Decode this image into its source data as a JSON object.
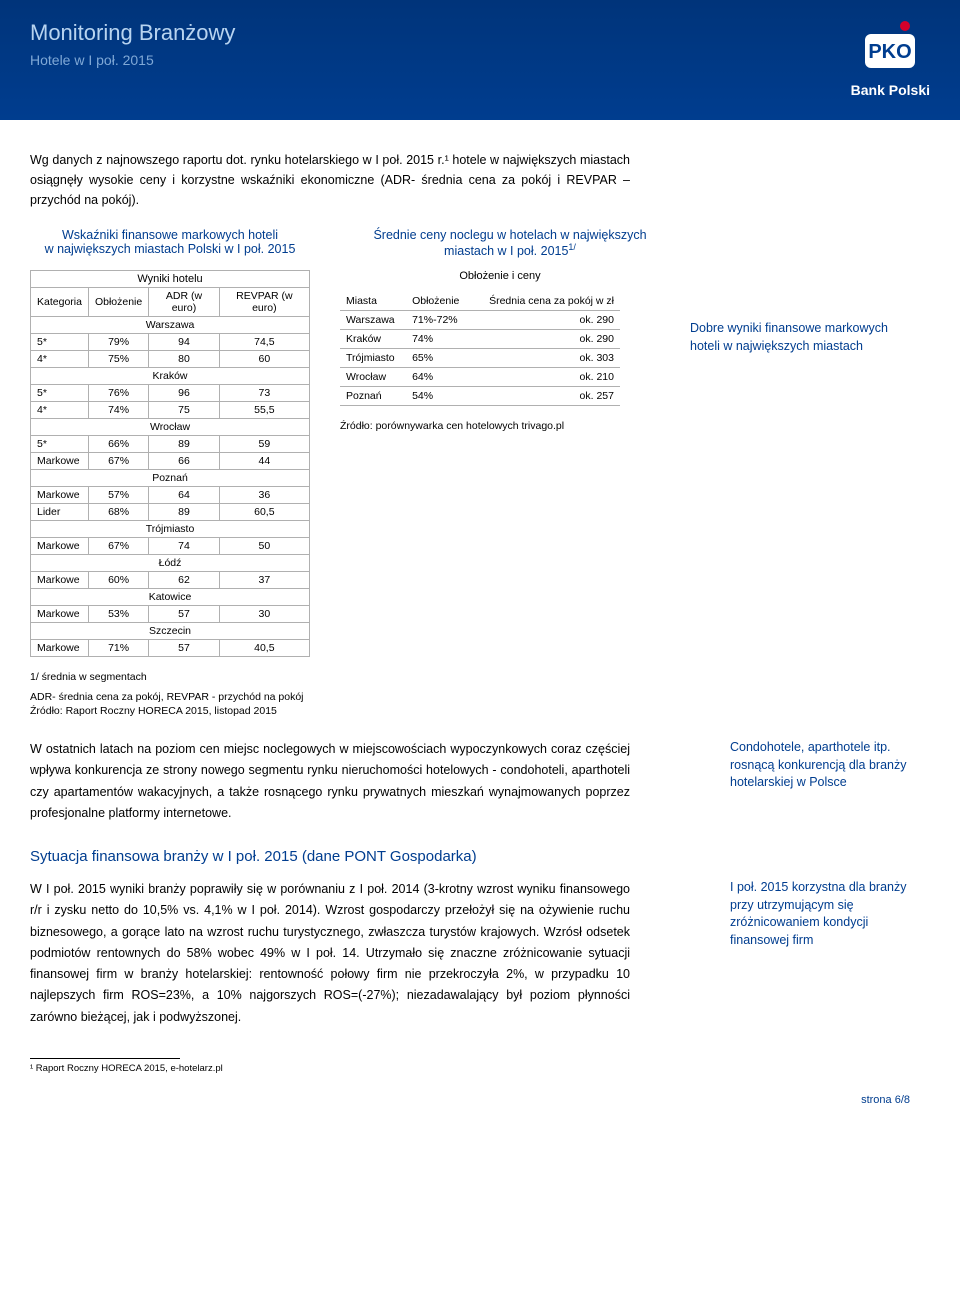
{
  "header": {
    "title": "Monitoring Branżowy",
    "subtitle": "Hotele w I poł. 2015",
    "logo_text": "Bank Polski",
    "colors": {
      "bg_top": "#00347a",
      "bg_bottom": "#003d8f",
      "title_color": "#b8d4f0",
      "subtitle_color": "#7fa8d6"
    }
  },
  "intro": {
    "text": "Wg danych z najnowszego raportu dot. rynku hotelarskiego w I poł. 2015 r.¹ hotele w największych miastach osiągnęły wysokie ceny i korzystne wskaźniki ekonomiczne (ADR- średnia cena za pokój i REVPAR – przychód na pokój)."
  },
  "table1": {
    "title": "Wskaźniki finansowe markowych hoteli w największych miastach Polski w I poł. 2015",
    "sup_title": "Wyniki hotelu",
    "headers": {
      "cat": "Kategoria",
      "occ": "Obłożenie",
      "adr": "ADR (w euro)",
      "revpar": "REVPAR (w euro)"
    },
    "sections": [
      {
        "city": "Warszawa",
        "rows": [
          {
            "cat": "5*",
            "occ": "79%",
            "adr": "94",
            "rev": "74,5"
          },
          {
            "cat": "4*",
            "occ": "75%",
            "adr": "80",
            "rev": "60"
          }
        ]
      },
      {
        "city": "Kraków",
        "rows": [
          {
            "cat": "5*",
            "occ": "76%",
            "adr": "96",
            "rev": "73"
          },
          {
            "cat": "4*",
            "occ": "74%",
            "adr": "75",
            "rev": "55,5"
          }
        ]
      },
      {
        "city": "Wrocław",
        "rows": [
          {
            "cat": "5*",
            "occ": "66%",
            "adr": "89",
            "rev": "59"
          },
          {
            "cat": "Markowe",
            "occ": "67%",
            "adr": "66",
            "rev": "44"
          }
        ]
      },
      {
        "city": "Poznań",
        "rows": [
          {
            "cat": "Markowe",
            "occ": "57%",
            "adr": "64",
            "rev": "36"
          },
          {
            "cat": "Lider",
            "occ": "68%",
            "adr": "89",
            "rev": "60,5"
          }
        ]
      },
      {
        "city": "Trójmiasto",
        "rows": [
          {
            "cat": "Markowe",
            "occ": "67%",
            "adr": "74",
            "rev": "50"
          }
        ]
      },
      {
        "city": "Łódź",
        "rows": [
          {
            "cat": "Markowe",
            "occ": "60%",
            "adr": "62",
            "rev": "37"
          }
        ]
      },
      {
        "city": "Katowice",
        "rows": [
          {
            "cat": "Markowe",
            "occ": "53%",
            "adr": "57",
            "rev": "30"
          }
        ]
      },
      {
        "city": "Szczecin",
        "rows": [
          {
            "cat": "Markowe",
            "occ": "71%",
            "adr": "57",
            "rev": "40,5"
          }
        ]
      }
    ]
  },
  "table2": {
    "title": "Średnie ceny noclegu w hotelach w największych miastach w I poł. 2015",
    "title_sup": "1/",
    "sup_title": "Obłożenie i ceny",
    "headers": {
      "city": "Miasta",
      "occ": "Obłożenie",
      "price": "Średnia cena za pokój w zł"
    },
    "rows": [
      {
        "city": "Warszawa",
        "occ": "71%-72%",
        "price": "ok. 290"
      },
      {
        "city": "Kraków",
        "occ": "74%",
        "price": "ok. 290"
      },
      {
        "city": "Trójmiasto",
        "occ": "65%",
        "price": "ok. 303"
      },
      {
        "city": "Wrocław",
        "occ": "64%",
        "price": "ok. 210"
      },
      {
        "city": "Poznań",
        "occ": "54%",
        "price": "ok. 257"
      }
    ],
    "source": "Źródło: porównywarka cen hotelowych trivago.pl"
  },
  "margin_notes": {
    "note1": "Dobre wyniki finansowe markowych hoteli w największych miastach",
    "note2": "Condohotele, aparthotele itp. rosnącą konkurencją dla branży hotelarskiej w Polsce",
    "note3": "I poł. 2015 korzystna dla branży przy utrzymującym się zróżnicowaniem kondycji finansowej firm"
  },
  "footnotes_mid": {
    "l1": "1/ średnia w segmentach",
    "l2": "ADR- średnia cena za pokój,  REVPAR -  przychód na pokój",
    "l3": "Źródło: Raport Roczny HORECA 2015, listopad 2015"
  },
  "para2": "W ostatnich latach na poziom cen miejsc noclegowych w miejscowościach wypoczynkowych coraz częściej wpływa konkurencja ze strony nowego segmentu rynku nieruchomości hotelowych - condohoteli, aparthoteli czy apartamentów wakacyjnych, a także rosnącego rynku prywatnych mieszkań wynajmowanych poprzez profesjonalne platformy internetowe.",
  "section2": {
    "heading": "Sytuacja finansowa branży w I poł. 2015 (dane PONT Gospodarka)",
    "para": "W I poł. 2015 wyniki branży poprawiły się w porównaniu z I poł. 2014 (3-krotny wzrost wyniku finansowego r/r i zysku netto do 10,5% vs. 4,1% w I poł. 2014). Wzrost gospodarczy przełożył się na ożywienie ruchu biznesowego, a gorące lato na wzrost ruchu turystycznego, zwłaszcza turystów krajowych. Wzrósł odsetek podmiotów rentownych do 58% wobec 49% w I poł. 14. Utrzymało się znaczne zróżnicowanie sytuacji finansowej firm w branży hotelarskiej: rentowność połowy firm nie przekroczyła 2%, w przypadku 10 najlepszych firm ROS=23%, a 10% najgorszych ROS=(-27%); niezadawalający był poziom płynności zarówno bieżącej, jak i podwyższonej."
  },
  "bottom_footnote": "¹ Raport Roczny HORECA 2015, e-hotelarz.pl",
  "page_number": "strona 6/8"
}
